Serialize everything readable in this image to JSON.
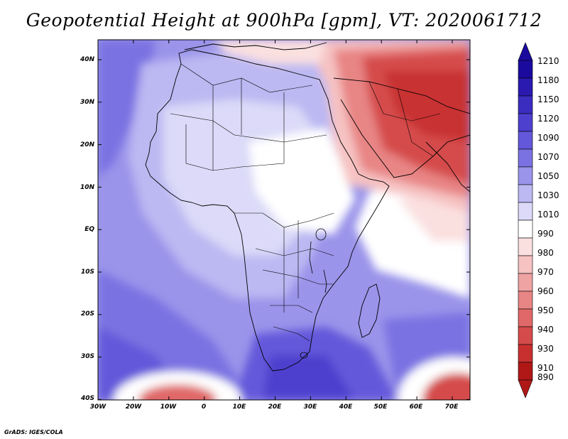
{
  "title": "Geopotential Height at 900hPa [gpm], VT: 2020061712",
  "credit": "GrADS: IGES/COLA",
  "lat_labels": [
    "40N",
    "30N",
    "20N",
    "10N",
    "EQ",
    "10S",
    "20S",
    "30S",
    "40S"
  ],
  "lon_labels": [
    "30W",
    "20W",
    "10W",
    "0",
    "10E",
    "20E",
    "30E",
    "40E",
    "50E",
    "60E",
    "70E"
  ],
  "colorbar": {
    "levels": [
      "1210",
      "1180",
      "1150",
      "1120",
      "1090",
      "1070",
      "1050",
      "1030",
      "1010",
      "990",
      "980",
      "970",
      "960",
      "950",
      "940",
      "930",
      "910",
      "890"
    ],
    "colors": [
      "#1a0a9e",
      "#2a1ab0",
      "#3a2dc0",
      "#4d40ce",
      "#6358da",
      "#7a72e2",
      "#9a94ea",
      "#bcb8f2",
      "#dcdaf8",
      "#ffffff",
      "#fbe0e0",
      "#f6c2c2",
      "#efa3a3",
      "#e88585",
      "#e06868",
      "#d54b4b",
      "#c83030",
      "#b01818"
    ]
  }
}
